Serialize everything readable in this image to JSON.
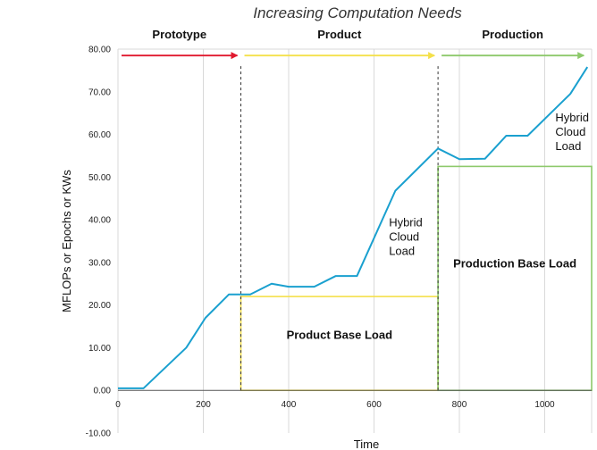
{
  "chart_data": {
    "type": "line",
    "title": "Increasing Computation Needs",
    "xlabel": "Time",
    "ylabel": "MFLOPs or Epochs or KWs",
    "xlim": [
      0,
      1110
    ],
    "ylim": [
      -10,
      80
    ],
    "x_ticks": [
      0,
      200,
      400,
      600,
      800,
      1000
    ],
    "y_ticks": [
      -10,
      0,
      10,
      20,
      30,
      40,
      50,
      60,
      70,
      80
    ],
    "y_tick_labels": [
      "-10.00",
      "0.00",
      "10.00",
      "20.00",
      "30.00",
      "40.00",
      "50.00",
      "60.00",
      "70.00",
      "80.00"
    ],
    "grid": "vertical",
    "series": [
      {
        "color": "#1aa0cf",
        "x": [
          0,
          60,
          160,
          205,
          260,
          310,
          360,
          400,
          460,
          510,
          560,
          650,
          750,
          800,
          860,
          910,
          960,
          1010,
          1060,
          1100
        ],
        "y": [
          0.5,
          0.5,
          10,
          17,
          22.5,
          22.5,
          25,
          24.3,
          24.3,
          26.8,
          26.8,
          46.8,
          56.7,
          54.2,
          54.3,
          59.7,
          59.7,
          64.6,
          69.5,
          75.8
        ]
      }
    ],
    "phases": [
      {
        "label": "Prototype",
        "x_start": 0,
        "x_end": 288,
        "color": "#e0182e"
      },
      {
        "label": "Product",
        "x_start": 288,
        "x_end": 750,
        "color": "#f4e04a"
      },
      {
        "label": "Production",
        "x_start": 750,
        "x_end": 1100,
        "color": "#8dc96b"
      }
    ],
    "phase_arrow_y": 78.5,
    "phase_dividers_x": [
      288,
      750
    ],
    "base_loads": [
      {
        "label": "Product Base Load",
        "x_start": 288,
        "x_end": 750,
        "y": 22,
        "color": "#f4e04a"
      },
      {
        "label": "Production Base Load",
        "x_start": 750,
        "x_end": 1110,
        "y": 52.5,
        "color": "#8dc96b"
      }
    ],
    "annotations": [
      {
        "text": [
          "Hybrid",
          "Cloud",
          "Load"
        ],
        "x": 635,
        "y": 38.5
      },
      {
        "text": [
          "Hybrid",
          "Cloud",
          "Load"
        ],
        "x": 1025,
        "y": 63
      }
    ]
  }
}
